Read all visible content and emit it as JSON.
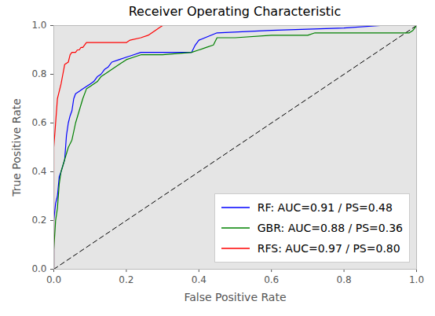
{
  "chart_data": {
    "type": "line",
    "title": "Receiver Operating Characteristic",
    "x_label": "False Positive Rate",
    "y_label": "True Positive Rate",
    "xlim": [
      0,
      1
    ],
    "ylim": [
      0,
      1
    ],
    "xticks": [
      {
        "value": 0,
        "label": "0.0"
      },
      0.2,
      0.4,
      0.6,
      0.8,
      {
        "value": 1,
        "label": "1.0"
      }
    ],
    "yticks": [
      {
        "value": 0,
        "label": "0.0"
      },
      0.2,
      0.4,
      0.6,
      0.8,
      {
        "value": 1,
        "label": "1.0"
      }
    ],
    "grid": false,
    "legend": "lower right",
    "series": [
      {
        "name": "RF: AUC=0.91 / PS=0.48",
        "color": "#0000ff",
        "line_style": "solid",
        "x": [
          0,
          0,
          0.005,
          0.01,
          0.015,
          0.02,
          0.03,
          0.035,
          0.04,
          0.045,
          0.05,
          0.055,
          0.06,
          0.07,
          0.08,
          0.09,
          0.1,
          0.11,
          0.12,
          0.13,
          0.14,
          0.15,
          0.16,
          0.18,
          0.2,
          0.22,
          0.24,
          0.3,
          0.38,
          0.39,
          0.4,
          0.45,
          0.6,
          0.8,
          0.9,
          1.0
        ],
        "values": [
          0,
          0.2,
          0.27,
          0.3,
          0.38,
          0.4,
          0.45,
          0.55,
          0.6,
          0.63,
          0.65,
          0.7,
          0.72,
          0.73,
          0.74,
          0.75,
          0.76,
          0.77,
          0.79,
          0.8,
          0.82,
          0.83,
          0.85,
          0.86,
          0.87,
          0.88,
          0.89,
          0.89,
          0.89,
          0.92,
          0.94,
          0.97,
          0.98,
          0.99,
          1.0,
          1.0
        ]
      },
      {
        "name": "GBR: AUC=0.88 / PS=0.36",
        "color": "#008000",
        "line_style": "solid",
        "x": [
          0,
          0,
          0.005,
          0.01,
          0.015,
          0.02,
          0.03,
          0.04,
          0.05,
          0.06,
          0.07,
          0.08,
          0.09,
          0.1,
          0.12,
          0.13,
          0.14,
          0.16,
          0.18,
          0.2,
          0.22,
          0.24,
          0.3,
          0.38,
          0.4,
          0.42,
          0.44,
          0.45,
          0.5,
          0.6,
          0.7,
          0.72,
          0.9,
          0.98,
          0.99,
          1.0
        ],
        "values": [
          0,
          0.08,
          0.2,
          0.25,
          0.35,
          0.4,
          0.45,
          0.5,
          0.53,
          0.6,
          0.65,
          0.7,
          0.74,
          0.75,
          0.77,
          0.79,
          0.8,
          0.82,
          0.84,
          0.86,
          0.87,
          0.88,
          0.88,
          0.89,
          0.9,
          0.91,
          0.92,
          0.95,
          0.95,
          0.96,
          0.96,
          0.97,
          0.97,
          0.97,
          0.98,
          1.0
        ]
      },
      {
        "name": "RFS: AUC=0.97 / PS=0.80",
        "color": "#ff0000",
        "line_style": "solid",
        "x": [
          0,
          0,
          0.005,
          0.01,
          0.015,
          0.02,
          0.025,
          0.03,
          0.04,
          0.045,
          0.05,
          0.06,
          0.065,
          0.07,
          0.075,
          0.08,
          0.09,
          0.1,
          0.2,
          0.21,
          0.24,
          0.26,
          0.28,
          0.29,
          0.3
        ],
        "values": [
          0,
          0.5,
          0.6,
          0.7,
          0.73,
          0.76,
          0.8,
          0.84,
          0.85,
          0.88,
          0.89,
          0.89,
          0.9,
          0.9,
          0.91,
          0.91,
          0.93,
          0.93,
          0.93,
          0.94,
          0.95,
          0.96,
          0.98,
          0.99,
          1.0
        ]
      }
    ],
    "diagonal": {
      "x": [
        0,
        1
      ],
      "values": [
        0,
        1
      ],
      "color": "#000000",
      "line_style": "dashed"
    }
  }
}
